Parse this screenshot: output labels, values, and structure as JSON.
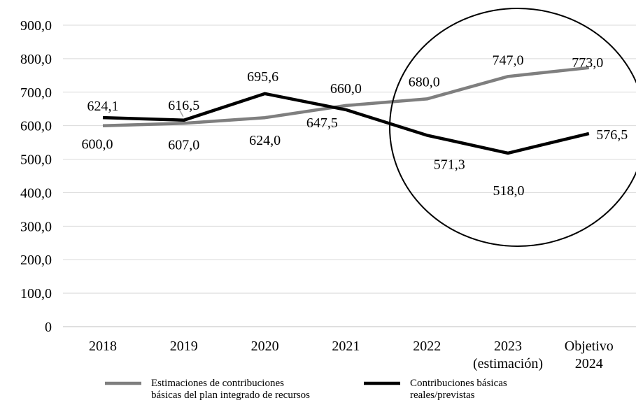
{
  "chart_data": {
    "type": "line",
    "title": "",
    "xlabel": "",
    "ylabel": "",
    "categories": [
      [
        "2018"
      ],
      [
        "2019"
      ],
      [
        "2020"
      ],
      [
        "2021"
      ],
      [
        "2022"
      ],
      [
        "2023",
        "(estimación)"
      ],
      [
        "Objetivo",
        "2024"
      ]
    ],
    "ylim": [
      0,
      900
    ],
    "yticks": [
      "0",
      "100,0",
      "200,0",
      "300,0",
      "400,0",
      "500,0",
      "600,0",
      "700,0",
      "800,0",
      "900,0"
    ],
    "grid": true,
    "legend_position": "bottom",
    "series": [
      {
        "name": "Estimaciones de contribuciones básicas del plan integrado de recursos",
        "legend_lines": [
          "Estimaciones de contribuciones",
          "básicas del plan integrado de recursos"
        ],
        "color": "#7f7f7f",
        "values": [
          600.0,
          607.0,
          624.0,
          660.0,
          680.0,
          747.0,
          773.0
        ],
        "labels": [
          "600,0",
          "607,0",
          "624,0",
          "660,0",
          "680,0",
          "747,0",
          "773,0"
        ]
      },
      {
        "name": "Contribuciones básicas reales/previstas",
        "legend_lines": [
          "Contribuciones básicas",
          "reales/previstas"
        ],
        "color": "#000000",
        "values": [
          624.1,
          616.5,
          695.6,
          647.5,
          571.3,
          518.0,
          576.5
        ],
        "labels": [
          "624,1",
          "616,5",
          "695,6",
          "647,5",
          "571,3",
          "518,0",
          "576,5"
        ]
      }
    ],
    "annotations": [
      {
        "type": "ellipse",
        "highlight": [
          "2022",
          "2023 (estimación)",
          "Objetivo 2024"
        ]
      }
    ]
  }
}
